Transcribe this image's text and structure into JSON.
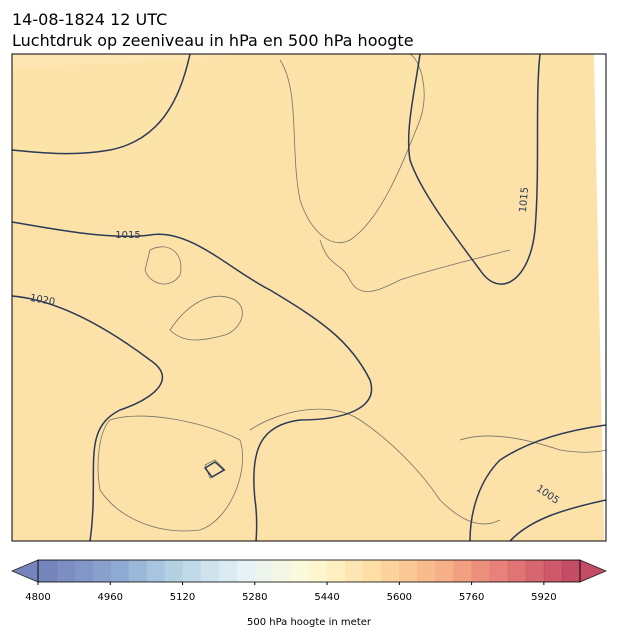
{
  "header": {
    "date": "14-08-1824 12 UTC",
    "title": "Luchtdruk op zeeniveau in hPa en 500 hPa hoogte"
  },
  "map": {
    "isobar_labels": [
      1015,
      1015,
      1020,
      1005
    ]
  },
  "colorbar": {
    "range": [
      4800,
      6000
    ],
    "step": 40,
    "ticks": [
      4800,
      4960,
      5120,
      5280,
      5440,
      5600,
      5760,
      5920
    ],
    "label": "500 hPa hoogte in meter"
  }
}
